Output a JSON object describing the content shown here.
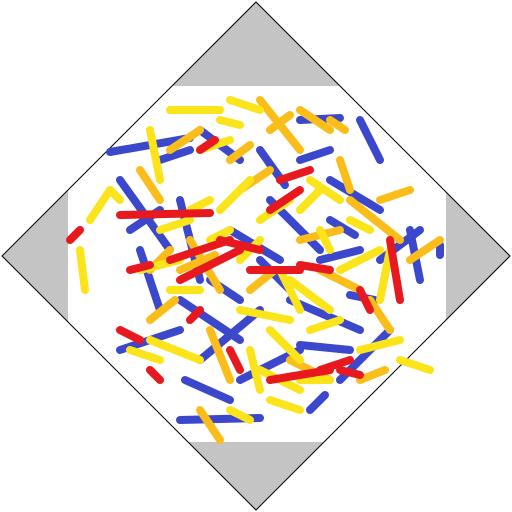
{
  "game": {
    "type": "stick-pile",
    "colors": {
      "background": "#ffffff",
      "frame": "#c4c4c4",
      "outline": "#000000",
      "red": "#e8191e",
      "blue": "#3b48cc",
      "yellow": "#fbe41a",
      "orange": "#fbbd19"
    }
  }
}
